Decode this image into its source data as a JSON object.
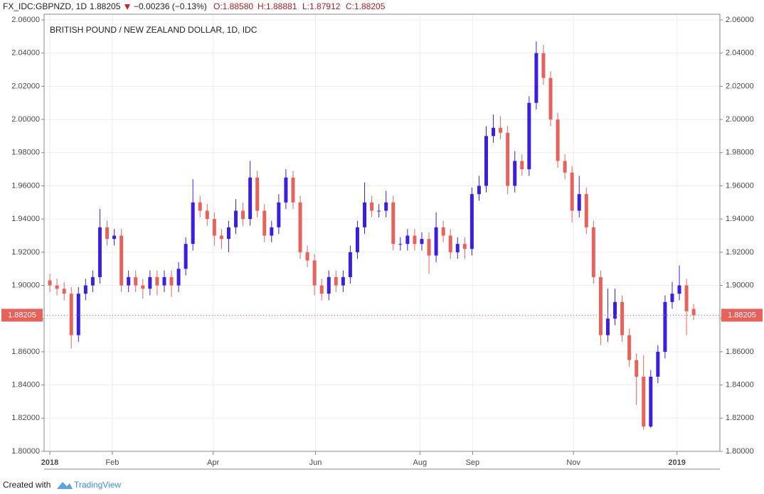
{
  "header": {
    "symbol": "FX_IDC:GBPNZD, 1D",
    "last": "1.88205",
    "change": "−0.00236 (−0.13%)",
    "open": "O:1.88580",
    "high": "H:1.88881",
    "low": "L:1.87912",
    "close": "C:1.88205"
  },
  "footer": {
    "created": "Created with",
    "brand": "TradingView"
  },
  "chart_data": {
    "type": "candlestick",
    "title": "BRITISH POUND / NEW ZEALAND DOLLAR, 1D, IDC",
    "price_label": "1.88205",
    "up_color": "#3b1fe0",
    "down_color": "#e8625c",
    "grid": true,
    "x": [
      0,
      3,
      6,
      9,
      12,
      15,
      18,
      21,
      24,
      27,
      30,
      33,
      36,
      39,
      42,
      45,
      48,
      51,
      54,
      57,
      60,
      63,
      66,
      69,
      72,
      75,
      78,
      81,
      84,
      87,
      90,
      93,
      96,
      99,
      102,
      105,
      108,
      111,
      114,
      117,
      120,
      123,
      126,
      129,
      132,
      135,
      138,
      141,
      144,
      147,
      150,
      153,
      156,
      159,
      162,
      165,
      168,
      171,
      174,
      177,
      180,
      183,
      186,
      189,
      192,
      195,
      198,
      201,
      204,
      207,
      210,
      213,
      216,
      219,
      222,
      225,
      228,
      231,
      234,
      237,
      240,
      243,
      246,
      249,
      252,
      255,
      258,
      261,
      264,
      267,
      270
    ],
    "open": [
      1.903,
      1.9,
      1.898,
      1.895,
      1.87,
      1.895,
      1.9,
      1.905,
      1.935,
      1.928,
      1.93,
      1.9,
      1.905,
      1.9,
      1.898,
      1.905,
      1.9,
      1.905,
      1.9,
      1.91,
      1.925,
      1.95,
      1.945,
      1.94,
      1.93,
      1.928,
      1.935,
      1.945,
      1.94,
      1.965,
      1.945,
      1.93,
      1.935,
      1.95,
      1.965,
      1.95,
      1.92,
      1.915,
      1.9,
      1.895,
      1.905,
      1.9,
      1.905,
      1.92,
      1.935,
      1.95,
      1.945,
      1.945,
      1.95,
      1.925,
      1.925,
      1.93,
      1.925,
      1.928,
      1.918,
      1.935,
      1.93,
      1.92,
      1.925,
      1.922,
      1.955,
      1.96,
      1.99,
      1.995,
      1.992,
      1.96,
      1.975,
      1.97,
      2.01,
      2.04,
      2.025,
      2.0,
      1.975,
      1.968,
      1.945,
      1.955,
      1.935,
      1.905,
      1.87,
      1.88,
      1.89,
      1.87,
      1.855,
      1.845,
      1.815,
      1.845,
      1.86,
      1.89,
      1.895,
      1.9,
      1.8858
    ],
    "high": [
      1.907,
      1.904,
      1.902,
      1.899,
      1.899,
      1.904,
      1.909,
      1.946,
      1.939,
      1.934,
      1.934,
      1.909,
      1.909,
      1.904,
      1.909,
      1.909,
      1.909,
      1.909,
      1.914,
      1.929,
      1.964,
      1.954,
      1.949,
      1.944,
      1.934,
      1.939,
      1.952,
      1.95,
      1.975,
      1.969,
      1.949,
      1.939,
      1.955,
      1.97,
      1.969,
      1.954,
      1.924,
      1.919,
      1.904,
      1.909,
      1.909,
      1.909,
      1.924,
      1.939,
      1.962,
      1.954,
      1.949,
      1.957,
      1.954,
      1.929,
      1.934,
      1.934,
      1.932,
      1.932,
      1.944,
      1.939,
      1.934,
      1.929,
      1.929,
      1.959,
      1.966,
      1.996,
      2.003,
      2.002,
      1.996,
      1.981,
      1.979,
      2.014,
      2.047,
      2.045,
      2.029,
      2.004,
      1.979,
      1.972,
      1.966,
      1.959,
      1.939,
      1.909,
      1.898,
      1.898,
      1.894,
      1.874,
      1.859,
      1.858,
      1.849,
      1.864,
      1.894,
      1.902,
      1.912,
      1.904,
      1.88881
    ],
    "low": [
      1.896,
      1.894,
      1.891,
      1.862,
      1.866,
      1.891,
      1.896,
      1.901,
      1.924,
      1.924,
      1.896,
      1.896,
      1.896,
      1.892,
      1.894,
      1.894,
      1.896,
      1.893,
      1.896,
      1.906,
      1.921,
      1.941,
      1.936,
      1.924,
      1.922,
      1.92,
      1.931,
      1.936,
      1.936,
      1.941,
      1.926,
      1.926,
      1.931,
      1.946,
      1.946,
      1.916,
      1.911,
      1.894,
      1.891,
      1.891,
      1.896,
      1.896,
      1.901,
      1.916,
      1.931,
      1.941,
      1.941,
      1.941,
      1.921,
      1.921,
      1.921,
      1.921,
      1.921,
      1.907,
      1.914,
      1.926,
      1.916,
      1.916,
      1.916,
      1.918,
      1.951,
      1.956,
      1.986,
      1.988,
      1.955,
      1.956,
      1.966,
      1.966,
      2.006,
      2.021,
      1.996,
      1.971,
      1.964,
      1.938,
      1.941,
      1.931,
      1.901,
      1.864,
      1.866,
      1.876,
      1.866,
      1.851,
      1.828,
      1.813,
      1.814,
      1.841,
      1.856,
      1.886,
      1.891,
      1.87,
      1.87912
    ],
    "close": [
      1.9,
      1.898,
      1.895,
      1.87,
      1.895,
      1.9,
      1.905,
      1.935,
      1.928,
      1.93,
      1.9,
      1.905,
      1.9,
      1.898,
      1.905,
      1.9,
      1.905,
      1.9,
      1.91,
      1.925,
      1.95,
      1.945,
      1.94,
      1.93,
      1.928,
      1.935,
      1.945,
      1.94,
      1.965,
      1.945,
      1.93,
      1.935,
      1.95,
      1.965,
      1.95,
      1.92,
      1.915,
      1.9,
      1.895,
      1.905,
      1.9,
      1.905,
      1.92,
      1.935,
      1.95,
      1.945,
      1.945,
      1.95,
      1.925,
      1.925,
      1.93,
      1.925,
      1.928,
      1.918,
      1.935,
      1.93,
      1.92,
      1.925,
      1.922,
      1.955,
      1.96,
      1.99,
      1.995,
      1.992,
      1.96,
      1.975,
      1.97,
      2.01,
      2.04,
      2.025,
      2.0,
      1.975,
      1.968,
      1.945,
      1.955,
      1.935,
      1.905,
      1.87,
      1.88,
      1.89,
      1.87,
      1.855,
      1.845,
      1.815,
      1.845,
      1.86,
      1.89,
      1.895,
      1.9,
      1.8844,
      1.88205
    ],
    "xlim": [
      -2.4,
      281
    ],
    "xticks": [
      {
        "value": 0,
        "label": "2018"
      },
      {
        "value": 26.2,
        "label": "Feb"
      },
      {
        "value": 68.5,
        "label": "Apr"
      },
      {
        "value": 111.4,
        "label": "Jun"
      },
      {
        "value": 155.2,
        "label": "Aug"
      },
      {
        "value": 177.3,
        "label": "Sep"
      },
      {
        "value": 219.6,
        "label": "Nov"
      },
      {
        "value": 263,
        "label": "2019"
      }
    ],
    "ylim": [
      1.8,
      2.06
    ],
    "yticks": [
      {
        "value": 1.8,
        "label": "1.80000"
      },
      {
        "value": 1.82,
        "label": "1.82000"
      },
      {
        "value": 1.84,
        "label": "1.84000"
      },
      {
        "value": 1.86,
        "label": "1.86000"
      },
      {
        "value": 1.88,
        "label": "1.88000"
      },
      {
        "value": 1.9,
        "label": "1.90000"
      },
      {
        "value": 1.92,
        "label": "1.92000"
      },
      {
        "value": 1.94,
        "label": "1.94000"
      },
      {
        "value": 1.96,
        "label": "1.96000"
      },
      {
        "value": 1.98,
        "label": "1.98000"
      },
      {
        "value": 2.0,
        "label": "2.00000"
      },
      {
        "value": 2.02,
        "label": "2.02000"
      },
      {
        "value": 2.04,
        "label": "2.04000"
      },
      {
        "value": 2.06,
        "label": "2.06000"
      }
    ]
  }
}
